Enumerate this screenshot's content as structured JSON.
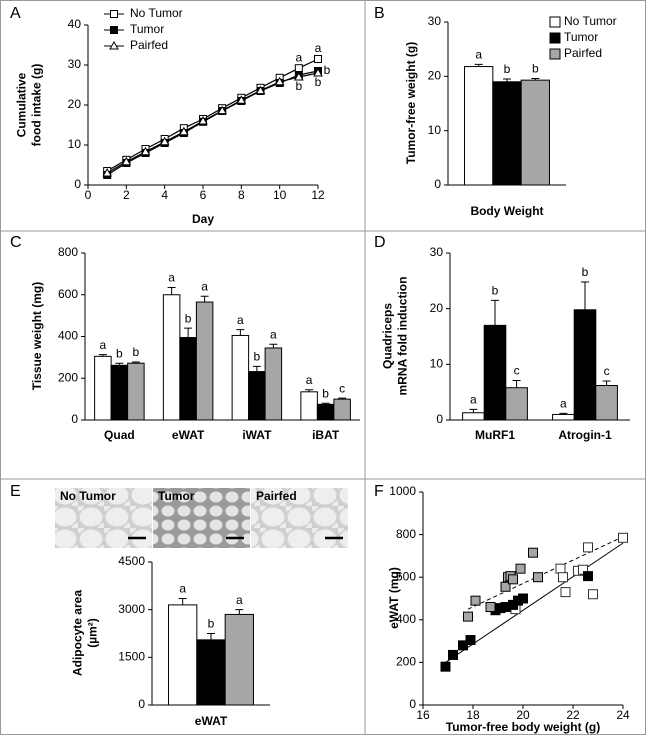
{
  "chart_data": [
    {
      "type": "line",
      "title": "A",
      "xlabel": "Day",
      "ylabel": [
        "Cumulative",
        "food intake (g)"
      ],
      "x": [
        1,
        2,
        3,
        4,
        5,
        6,
        7,
        8,
        9,
        10,
        11,
        12
      ],
      "xlim": [
        0,
        12
      ],
      "xticks": [
        0,
        2,
        4,
        6,
        8,
        10,
        12
      ],
      "ylim": [
        0,
        40
      ],
      "yticks": [
        0,
        10,
        20,
        30,
        40
      ],
      "legend": "top-left",
      "series": [
        {
          "name": "No Tumor",
          "color": "#ffffff",
          "marker": "square",
          "values": [
            3.5,
            6.3,
            9,
            11.5,
            14.2,
            16.5,
            19.2,
            21.8,
            24.3,
            26.8,
            29.2,
            31.5
          ],
          "point_labels": [
            null,
            null,
            null,
            null,
            null,
            null,
            null,
            null,
            null,
            null,
            "a",
            "a"
          ]
        },
        {
          "name": "Tumor",
          "color": "#000000",
          "marker": "square",
          "values": [
            2.5,
            5.5,
            8,
            10.5,
            13,
            15.8,
            18.5,
            21,
            23.5,
            25.5,
            27.5,
            28.5
          ],
          "point_labels": [
            null,
            null,
            null,
            null,
            null,
            null,
            null,
            null,
            null,
            null,
            null,
            "b"
          ]
        },
        {
          "name": "Pairfed",
          "color": "#ffffff",
          "marker": "triangle",
          "values": [
            3,
            5.8,
            8.3,
            10.8,
            13.3,
            16,
            18.6,
            21.2,
            23.6,
            25.8,
            27,
            28
          ],
          "point_labels": [
            null,
            null,
            null,
            null,
            null,
            null,
            null,
            null,
            null,
            null,
            "b",
            "b"
          ]
        }
      ]
    },
    {
      "type": "bar",
      "title": "B",
      "xlabel": "Body Weight",
      "ylabel": [
        "Tumor-free weight (g)"
      ],
      "categories": [
        null
      ],
      "ylim": [
        0,
        30
      ],
      "yticks": [
        0,
        10,
        20,
        30
      ],
      "legend": "top-right",
      "series": [
        {
          "name": "No Tumor",
          "color": "#ffffff",
          "values": [
            21.8
          ],
          "errors": [
            0.4
          ],
          "letters": [
            "a"
          ]
        },
        {
          "name": "Tumor",
          "color": "#000000",
          "values": [
            19
          ],
          "errors": [
            0.5
          ],
          "letters": [
            "b"
          ]
        },
        {
          "name": "Pairfed",
          "color": "#a6a6a6",
          "values": [
            19.3
          ],
          "errors": [
            0.3
          ],
          "letters": [
            "b"
          ]
        }
      ]
    },
    {
      "type": "bar",
      "title": "C",
      "ylabel": [
        "Tissue weight (mg)"
      ],
      "categories": [
        "Quad",
        "eWAT",
        "iWAT",
        "iBAT"
      ],
      "ylim": [
        0,
        800
      ],
      "yticks": [
        0,
        200,
        400,
        600,
        800
      ],
      "series": [
        {
          "color": "#ffffff",
          "values": [
            305,
            600,
            405,
            135
          ],
          "errors": [
            8,
            35,
            28,
            10
          ],
          "letters": [
            "a",
            "a",
            "a",
            "a"
          ]
        },
        {
          "color": "#000000",
          "values": [
            262,
            395,
            232,
            75
          ],
          "errors": [
            10,
            45,
            25,
            5
          ],
          "letters": [
            "b",
            "b",
            "b",
            "b"
          ]
        },
        {
          "color": "#a6a6a6",
          "values": [
            272,
            565,
            345,
            100
          ],
          "errors": [
            6,
            28,
            18,
            5
          ],
          "letters": [
            "b",
            "a",
            "a",
            "c"
          ]
        }
      ]
    },
    {
      "type": "bar",
      "title": "D",
      "ylabel": [
        "Quadriceps",
        "mRNA fold induction"
      ],
      "categories": [
        "MuRF1",
        "Atrogin-1"
      ],
      "ylim": [
        0,
        30
      ],
      "yticks": [
        0,
        10,
        20,
        30
      ],
      "series": [
        {
          "color": "#ffffff",
          "values": [
            1.3,
            1.0
          ],
          "errors": [
            0.6,
            0.2
          ],
          "letters": [
            "a",
            "a"
          ]
        },
        {
          "color": "#000000",
          "values": [
            17,
            19.8
          ],
          "errors": [
            4.5,
            5
          ],
          "letters": [
            "b",
            "b"
          ]
        },
        {
          "color": "#a6a6a6",
          "values": [
            5.8,
            6.2
          ],
          "errors": [
            1.3,
            0.8
          ],
          "letters": [
            "c",
            "c"
          ]
        }
      ]
    },
    {
      "type": "bar",
      "title": "E",
      "image_labels": [
        "No Tumor",
        "Tumor",
        "Pairfed"
      ],
      "ylabel": [
        "Adipocyte area",
        "(µm²)"
      ],
      "xlabel": "eWAT",
      "categories": [
        null
      ],
      "ylim": [
        0,
        4500
      ],
      "yticks": [
        0,
        1500,
        3000,
        4500
      ],
      "series": [
        {
          "color": "#ffffff",
          "values": [
            3150
          ],
          "errors": [
            200
          ],
          "letters": [
            "a"
          ]
        },
        {
          "color": "#000000",
          "values": [
            2050
          ],
          "errors": [
            200
          ],
          "letters": [
            "b"
          ]
        },
        {
          "color": "#a6a6a6",
          "values": [
            2850
          ],
          "errors": [
            150
          ],
          "letters": [
            "a"
          ]
        }
      ]
    },
    {
      "type": "scatter",
      "title": "F",
      "xlabel": "Tumor-free body weight (g)",
      "ylabel": [
        "eWAT (mg)"
      ],
      "xlim": [
        16,
        24
      ],
      "xticks": [
        16,
        18,
        20,
        22,
        24
      ],
      "ylim": [
        0,
        1000
      ],
      "yticks": [
        0,
        200,
        400,
        600,
        800,
        1000
      ],
      "series": [
        {
          "color": "#ffffff",
          "x": [
            19.6,
            19.7,
            21.5,
            21.6,
            21.7,
            22.2,
            22.4,
            22.6,
            22.8,
            24
          ],
          "values": [
            460,
            450,
            640,
            600,
            530,
            630,
            635,
            740,
            520,
            785
          ]
        },
        {
          "color": "#000000",
          "x": [
            16.9,
            17.2,
            17.6,
            17.9,
            18.9,
            19.1,
            19.3,
            19.6,
            19.8,
            20,
            22.6
          ],
          "values": [
            180,
            235,
            280,
            305,
            445,
            455,
            460,
            470,
            490,
            500,
            605
          ]
        },
        {
          "color": "#a6a6a6",
          "x": [
            17.8,
            18.1,
            18.7,
            19.3,
            19.4,
            19.5,
            19.6,
            19.9,
            20.4,
            20.6
          ],
          "values": [
            415,
            490,
            460,
            555,
            600,
            605,
            590,
            640,
            715,
            600
          ]
        }
      ],
      "trendlines": [
        {
          "style": "solid",
          "x": [
            16.9,
            24
          ],
          "y": [
            200,
            760
          ]
        },
        {
          "style": "dashed",
          "x": [
            17.8,
            24
          ],
          "y": [
            450,
            790
          ]
        }
      ]
    }
  ]
}
